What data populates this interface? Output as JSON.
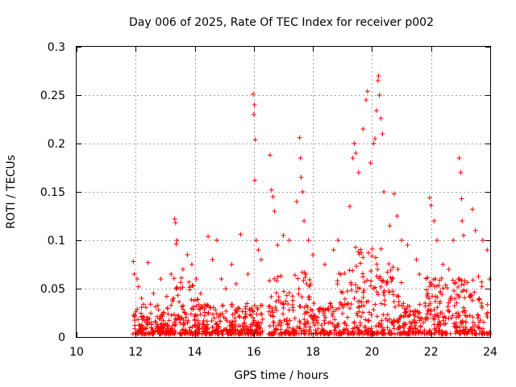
{
  "chart_data": {
    "type": "scatter",
    "title": "Day 006 of 2025, Rate Of TEC Index for receiver p002",
    "xlabel": "GPS time / hours",
    "ylabel": "ROTI / TECUs",
    "xlim": [
      10,
      24
    ],
    "ylim": [
      0,
      0.3
    ],
    "x_ticks": [
      10,
      12,
      14,
      16,
      18,
      20,
      22,
      24
    ],
    "x_tick_labels": [
      "10",
      "12",
      "14",
      "16",
      "18",
      "20",
      "22",
      "24"
    ],
    "y_ticks": [
      0,
      0.05,
      0.1,
      0.15,
      0.2,
      0.25,
      0.3
    ],
    "y_tick_labels": [
      "0",
      "0.05",
      "0.1",
      "0.15",
      "0.2",
      "0.25",
      "0.3"
    ],
    "grid": true,
    "marker": "+",
    "marker_color": "#ff0000",
    "data_start_hour": 11.9,
    "data_gap": [
      16.3,
      16.5
    ],
    "series": [
      {
        "name": "ROTI",
        "points": [
          [
            11.92,
            0.078
          ],
          [
            11.95,
            0.065
          ],
          [
            12.05,
            0.06
          ],
          [
            12.1,
            0.052
          ],
          [
            12.2,
            0.04
          ],
          [
            12.42,
            0.077
          ],
          [
            12.6,
            0.045
          ],
          [
            12.85,
            0.06
          ],
          [
            13.05,
            0.042
          ],
          [
            13.2,
            0.065
          ],
          [
            13.32,
            0.122
          ],
          [
            13.35,
            0.118
          ],
          [
            13.37,
            0.096
          ],
          [
            13.4,
            0.1
          ],
          [
            13.6,
            0.07
          ],
          [
            13.75,
            0.085
          ],
          [
            13.9,
            0.075
          ],
          [
            14.05,
            0.06
          ],
          [
            14.2,
            0.045
          ],
          [
            14.45,
            0.104
          ],
          [
            14.6,
            0.08
          ],
          [
            14.75,
            0.1
          ],
          [
            14.9,
            0.06
          ],
          [
            15.05,
            0.05
          ],
          [
            15.25,
            0.075
          ],
          [
            15.4,
            0.055
          ],
          [
            15.55,
            0.106
          ],
          [
            15.8,
            0.065
          ],
          [
            15.98,
            0.251
          ],
          [
            16.02,
            0.24
          ],
          [
            16.0,
            0.23
          ],
          [
            16.05,
            0.204
          ],
          [
            16.03,
            0.162
          ],
          [
            16.08,
            0.1
          ],
          [
            16.15,
            0.09
          ],
          [
            16.25,
            0.08
          ],
          [
            16.55,
            0.188
          ],
          [
            16.6,
            0.152
          ],
          [
            16.65,
            0.145
          ],
          [
            16.7,
            0.13
          ],
          [
            16.8,
            0.095
          ],
          [
            17.0,
            0.105
          ],
          [
            17.2,
            0.1
          ],
          [
            17.45,
            0.14
          ],
          [
            17.55,
            0.206
          ],
          [
            17.58,
            0.185
          ],
          [
            17.6,
            0.165
          ],
          [
            17.65,
            0.15
          ],
          [
            17.7,
            0.12
          ],
          [
            17.85,
            0.1
          ],
          [
            18.0,
            0.085
          ],
          [
            18.4,
            0.075
          ],
          [
            18.7,
            0.09
          ],
          [
            18.85,
            0.1
          ],
          [
            19.25,
            0.135
          ],
          [
            19.35,
            0.185
          ],
          [
            19.4,
            0.2
          ],
          [
            19.45,
            0.19
          ],
          [
            19.55,
            0.17
          ],
          [
            19.7,
            0.215
          ],
          [
            19.8,
            0.245
          ],
          [
            19.85,
            0.254
          ],
          [
            19.95,
            0.18
          ],
          [
            20.05,
            0.2
          ],
          [
            20.1,
            0.205
          ],
          [
            20.15,
            0.234
          ],
          [
            20.2,
            0.265
          ],
          [
            20.22,
            0.27
          ],
          [
            20.25,
            0.25
          ],
          [
            20.3,
            0.226
          ],
          [
            20.35,
            0.21
          ],
          [
            20.4,
            0.15
          ],
          [
            20.6,
            0.115
          ],
          [
            20.75,
            0.148
          ],
          [
            20.85,
            0.125
          ],
          [
            21.0,
            0.1
          ],
          [
            21.2,
            0.095
          ],
          [
            21.5,
            0.08
          ],
          [
            21.6,
            0.065
          ],
          [
            21.95,
            0.144
          ],
          [
            22.0,
            0.136
          ],
          [
            22.1,
            0.12
          ],
          [
            22.2,
            0.1
          ],
          [
            22.4,
            0.075
          ],
          [
            22.6,
            0.07
          ],
          [
            22.75,
            0.1
          ],
          [
            22.95,
            0.185
          ],
          [
            23.0,
            0.17
          ],
          [
            23.03,
            0.143
          ],
          [
            23.05,
            0.12
          ],
          [
            23.1,
            0.105
          ],
          [
            23.4,
            0.132
          ],
          [
            23.5,
            0.11
          ],
          [
            23.75,
            0.1
          ],
          [
            23.9,
            0.09
          ],
          [
            23.98,
            0.06
          ]
        ]
      }
    ]
  }
}
